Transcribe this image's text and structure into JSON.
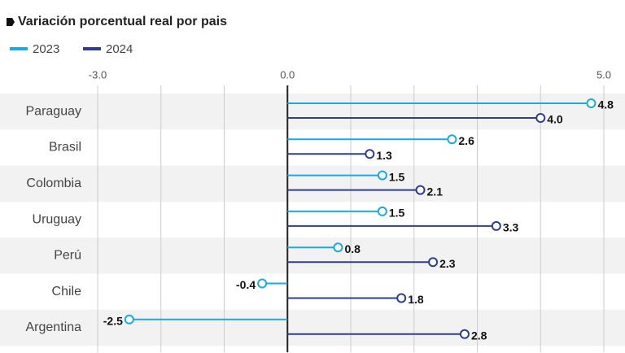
{
  "chart_data": {
    "type": "lollipop",
    "subtitle": "Variación porcentual real por pais",
    "categories": [
      "Paraguay",
      "Brasil",
      "Colombia",
      "Uruguay",
      "Perú",
      "Chile",
      "Argentina"
    ],
    "series": [
      {
        "name": "2023",
        "color": "#1ca8e0",
        "values": [
          4.8,
          2.6,
          1.5,
          1.5,
          0.8,
          -0.4,
          -2.5
        ],
        "value_labels": [
          "4.8",
          "2.6",
          "1.5",
          "1.5",
          "0.8",
          "-0.4",
          "-2.5"
        ]
      },
      {
        "name": "2024",
        "color": "#2f3d8f",
        "values": [
          4.0,
          1.3,
          2.1,
          3.3,
          2.3,
          1.8,
          2.8
        ],
        "value_labels": [
          "4.0",
          "1.3",
          "2.1",
          "3.3",
          "2.3",
          "1.8",
          "2.8"
        ]
      }
    ],
    "xlim": [
      -3,
      5
    ],
    "xticks": [
      {
        "value": -3,
        "label": "-3.0"
      },
      {
        "value": 0,
        "label": "0.0"
      },
      {
        "value": 5,
        "label": "5.0"
      }
    ],
    "minor_xticks": [
      -2,
      -1,
      1,
      2,
      3,
      4
    ],
    "grid": true
  }
}
